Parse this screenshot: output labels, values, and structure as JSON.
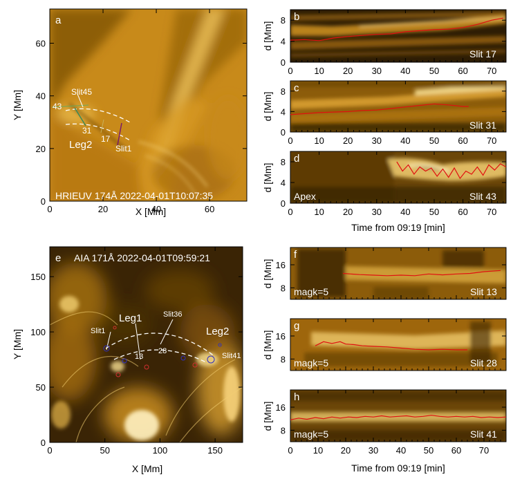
{
  "panels": {
    "a": {
      "letter": "a",
      "caption": "HRIEUV 174Å 2022-04-01T10:07:35",
      "xlabel": "X [Mm]",
      "ylabel": "Y [Mm]",
      "xticks": [
        "0",
        "20",
        "40",
        "60"
      ],
      "yticks": [
        "0",
        "20",
        "40",
        "60"
      ],
      "labels": {
        "slit45": "Slit45",
        "n43": "43",
        "n31": "31",
        "n17": "17",
        "slit1": "Slit1",
        "leg2": "Leg2"
      }
    },
    "b": {
      "letter": "b",
      "slit": "Slit 17",
      "ylabel": "d [Mm]",
      "yticks": [
        "0",
        "4",
        "8"
      ]
    },
    "c": {
      "letter": "c",
      "slit": "Slit 31",
      "ylabel": "d [Mm]",
      "yticks": [
        "0",
        "4",
        "8"
      ]
    },
    "d": {
      "letter": "d",
      "slit": "Slit 43",
      "ylabel": "d [Mm]",
      "yticks": [
        "0",
        "4",
        "8"
      ],
      "note": "Apex"
    },
    "top_time_ticks": [
      "0",
      "10",
      "20",
      "30",
      "40",
      "50",
      "60",
      "70"
    ],
    "top_xlabel": "Time from 09:19 [min]",
    "e": {
      "letter": "e",
      "caption": "AIA 171Å 2022-04-01T09:59:21",
      "xlabel": "X [Mm]",
      "ylabel": "Y [Mm]",
      "xticks": [
        "0",
        "50",
        "100",
        "150"
      ],
      "yticks": [
        "0",
        "50",
        "100",
        "150"
      ],
      "labels": {
        "leg1": "Leg1",
        "leg2": "Leg2",
        "slit36": "Slit36",
        "slit1": "Slit1",
        "slit41": "Slit41",
        "n13": "13",
        "n28": "28"
      }
    },
    "f": {
      "letter": "f",
      "slit": "Slit 13",
      "note": "magk=5",
      "ylabel": "d [Mm]",
      "yticks": [
        "8",
        "16"
      ]
    },
    "g": {
      "letter": "g",
      "slit": "Slit 28",
      "note": "magk=5",
      "ylabel": "d [Mm]",
      "yticks": [
        "8",
        "16"
      ]
    },
    "h": {
      "letter": "h",
      "slit": "Slit 41",
      "note": "magk=5",
      "ylabel": "d [Mm]",
      "yticks": [
        "8",
        "16"
      ]
    },
    "bottom_time_ticks": [
      "0",
      "10",
      "20",
      "30",
      "40",
      "50",
      "60",
      "70"
    ],
    "bottom_xlabel": "Time from 09:19 [min]"
  },
  "chart_data": [
    {
      "panel": "b",
      "type": "line",
      "xlim": [
        0,
        75
      ],
      "ylim": [
        0,
        10
      ],
      "series": [
        {
          "x": [
            0,
            5,
            10,
            15,
            20,
            25,
            30,
            35,
            40,
            45,
            50,
            55,
            60,
            65,
            70,
            74
          ],
          "values": [
            4.2,
            4.3,
            4.1,
            4.6,
            4.9,
            5.1,
            5.3,
            5.4,
            5.8,
            6.0,
            6.2,
            6.3,
            6.6,
            7.2,
            8.0,
            8.4
          ]
        }
      ]
    },
    {
      "panel": "c",
      "type": "line",
      "xlim": [
        0,
        75
      ],
      "ylim": [
        0,
        10
      ],
      "series": [
        {
          "x": [
            0,
            5,
            10,
            15,
            20,
            25,
            30,
            35,
            40,
            45,
            50,
            55,
            60,
            62
          ],
          "values": [
            3.4,
            3.6,
            3.8,
            3.9,
            4.0,
            4.2,
            4.3,
            4.6,
            4.9,
            5.2,
            5.5,
            5.3,
            5.0,
            5.0
          ]
        }
      ]
    },
    {
      "panel": "d",
      "type": "line",
      "xlim": [
        0,
        75
      ],
      "ylim": [
        0,
        10
      ],
      "series": [
        {
          "x": [
            37,
            39,
            41,
            43,
            45,
            47,
            49,
            51,
            53,
            55,
            57,
            59,
            61,
            63,
            65,
            67,
            69,
            71,
            73,
            75
          ],
          "values": [
            8.0,
            6.2,
            7.4,
            5.6,
            7.0,
            6.2,
            6.8,
            5.2,
            6.6,
            5.0,
            6.8,
            4.8,
            6.2,
            5.6,
            7.0,
            5.4,
            7.4,
            6.4,
            7.6,
            7.0
          ]
        }
      ]
    },
    {
      "panel": "f",
      "type": "line",
      "xlim": [
        0,
        78
      ],
      "ylim": [
        4,
        22
      ],
      "series": [
        {
          "x": [
            19,
            25,
            30,
            35,
            40,
            45,
            50,
            55,
            60,
            65,
            70,
            76
          ],
          "values": [
            13.0,
            12.6,
            12.4,
            12.2,
            12.4,
            12.2,
            12.8,
            12.5,
            12.8,
            13.0,
            13.6,
            14.0
          ]
        }
      ]
    },
    {
      "panel": "g",
      "type": "line",
      "xlim": [
        0,
        78
      ],
      "ylim": [
        4,
        22
      ],
      "series": [
        {
          "x": [
            9,
            12,
            15,
            18,
            20,
            23,
            26,
            30,
            35,
            40,
            45,
            50,
            55,
            60,
            64
          ],
          "values": [
            12.6,
            14.0,
            13.4,
            14.0,
            13.2,
            13.0,
            12.6,
            12.4,
            12.2,
            11.8,
            11.4,
            11.2,
            11.4,
            11.2,
            11.2
          ]
        }
      ]
    },
    {
      "panel": "h",
      "type": "line",
      "xlim": [
        0,
        78
      ],
      "ylim": [
        4,
        22
      ],
      "series": [
        {
          "x": [
            0,
            3,
            6,
            9,
            12,
            15,
            18,
            21,
            24,
            27,
            30,
            33,
            36,
            39,
            42,
            45,
            48,
            51,
            54,
            57,
            60,
            63,
            66,
            69,
            72,
            75,
            78
          ],
          "values": [
            11.6,
            12.2,
            11.8,
            12.4,
            12.0,
            12.6,
            12.2,
            12.6,
            12.4,
            12.8,
            12.6,
            13.0,
            12.6,
            12.8,
            13.0,
            12.6,
            12.8,
            13.2,
            12.8,
            12.6,
            12.8,
            12.6,
            12.8,
            12.4,
            12.6,
            12.4,
            12.6
          ]
        }
      ]
    }
  ]
}
